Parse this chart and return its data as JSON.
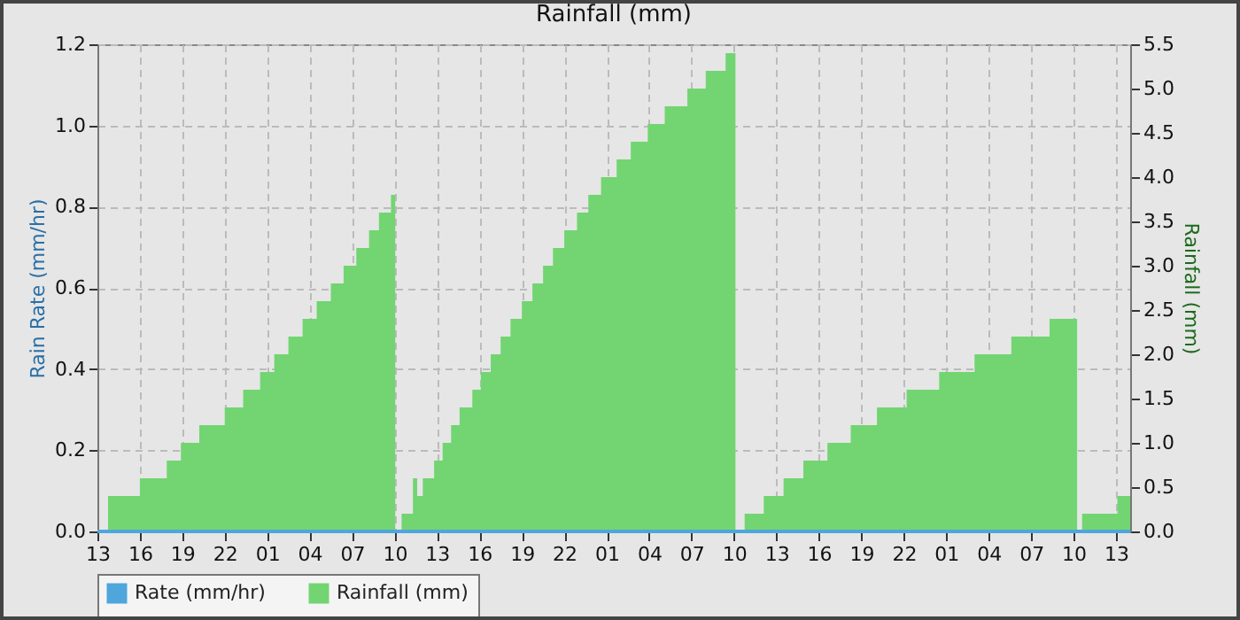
{
  "chart_data": {
    "type": "line",
    "title": "Rainfall (mm)",
    "ylabel": "Rain Rate (mm/hr)",
    "y2label": "Rainfall (mm)",
    "xlim": [
      "--01-01T13:00",
      "--01-04T14:00"
    ],
    "xticks": [
      {
        "value": "--01-01T13:00",
        "label": "13"
      },
      {
        "value": "--01-01T16:00",
        "label": "16"
      },
      {
        "value": "--01-01T19:00",
        "label": "19"
      },
      {
        "value": "--01-01T22:00",
        "label": "22"
      },
      {
        "value": "--01-02T01:00",
        "label": "01"
      },
      {
        "value": "--01-02T04:00",
        "label": "04"
      },
      {
        "value": "--01-02T07:00",
        "label": "07"
      },
      {
        "value": "--01-02T10:00",
        "label": "10"
      },
      {
        "value": "--01-02T13:00",
        "label": "13"
      },
      {
        "value": "--01-02T16:00",
        "label": "16"
      },
      {
        "value": "--01-02T19:00",
        "label": "19"
      },
      {
        "value": "--01-02T22:00",
        "label": "22"
      },
      {
        "value": "--01-03T01:00",
        "label": "01"
      },
      {
        "value": "--01-03T04:00",
        "label": "04"
      },
      {
        "value": "--01-03T07:00",
        "label": "07"
      },
      {
        "value": "--01-03T10:00",
        "label": "10"
      },
      {
        "value": "--01-03T13:00",
        "label": "13"
      },
      {
        "value": "--01-03T16:00",
        "label": "16"
      },
      {
        "value": "--01-03T19:00",
        "label": "19"
      },
      {
        "value": "--01-03T22:00",
        "label": "22"
      },
      {
        "value": "--01-04T01:00",
        "label": "01"
      },
      {
        "value": "--01-04T04:00",
        "label": "04"
      },
      {
        "value": "--01-04T07:00",
        "label": "07"
      },
      {
        "value": "--01-04T10:00",
        "label": "10"
      },
      {
        "value": "--01-04T13:00",
        "label": "13"
      }
    ],
    "ylim": [
      0,
      1.2
    ],
    "yticks": [
      {
        "value": 0,
        "label": "0.0"
      },
      0.2,
      0.4,
      0.6,
      0.8,
      {
        "value": 1,
        "label": "1.0"
      },
      1.2
    ],
    "y2lim": [
      0,
      5.5
    ],
    "y2ticks": [
      {
        "value": 0,
        "label": "0.0"
      },
      0.5,
      {
        "value": 1,
        "label": "1.0"
      },
      1.5,
      {
        "value": 2,
        "label": "2.0"
      },
      2.5,
      {
        "value": 3,
        "label": "3.0"
      },
      3.5,
      {
        "value": 4,
        "label": "4.0"
      },
      4.5,
      {
        "value": 5,
        "label": "5.0"
      },
      5.5
    ],
    "grid": true,
    "legend": "bottom",
    "series": [
      {
        "name": "Rate (mm/hr)",
        "color": "#4ea6dc",
        "x": [
          "--01-01T13:00",
          "--01-04T14:00"
        ],
        "values": [
          0,
          0
        ]
      },
      {
        "name": "Rainfall (mm)",
        "type": "area",
        "axis": "y2",
        "color": "#72d572",
        "x": [
          "--01-01T13:45",
          "--01-01T16:00",
          "--01-01T17:54",
          "--01-01T18:54",
          "--01-01T20:12",
          "--01-01T22:00",
          "--01-01T23:18",
          "--01-02T00:30",
          "--01-02T01:30",
          "--01-02T02:30",
          "--01-02T03:30",
          "--01-02T04:30",
          "--01-02T05:30",
          "--01-02T06:24",
          "--01-02T07:18",
          "--01-02T08:12",
          "--01-02T08:54",
          "--01-02T09:45",
          "--01-02T10:03",
          "--01-02T10:06",
          "--01-02T10:30",
          "--01-02T11:18",
          "--01-02T11:36",
          "--01-02T12:00",
          "--01-02T12:48",
          "--01-02T13:24",
          "--01-02T14:00",
          "--01-02T14:36",
          "--01-02T15:30",
          "--01-02T16:06",
          "--01-02T16:48",
          "--01-02T17:30",
          "--01-02T18:12",
          "--01-02T19:00",
          "--01-02T19:45",
          "--01-02T20:30",
          "--01-02T21:12",
          "--01-02T22:00",
          "--01-02T22:54",
          "--01-02T23:42",
          "--01-03T00:36",
          "--01-03T01:42",
          "--01-03T02:42",
          "--01-03T03:54",
          "--01-03T05:06",
          "--01-03T06:42",
          "--01-03T08:00",
          "--01-03T09:24",
          "--01-03T10:06",
          "--01-03T10:12",
          "--01-03T10:45",
          "--01-03T12:06",
          "--01-03T13:30",
          "--01-03T14:54",
          "--01-03T16:36",
          "--01-03T18:15",
          "--01-03T20:06",
          "--01-03T22:12",
          "--01-04T00:30",
          "--01-04T03:00",
          "--01-04T05:36",
          "--01-04T08:18",
          "--01-04T10:15",
          "--01-04T10:18",
          "--01-04T10:36",
          "--01-04T13:06",
          "--01-04T14:00"
        ],
        "values": [
          0.4,
          0.6,
          0.8,
          1.0,
          1.2,
          1.4,
          1.6,
          1.8,
          2.0,
          2.2,
          2.4,
          2.6,
          2.8,
          3.0,
          3.2,
          3.4,
          3.6,
          3.8,
          3.8,
          null,
          0.2,
          0.6,
          0.4,
          0.6,
          0.8,
          1.0,
          1.2,
          1.4,
          1.6,
          1.8,
          2.0,
          2.2,
          2.4,
          2.6,
          2.8,
          3.0,
          3.2,
          3.4,
          3.6,
          3.8,
          4.0,
          4.2,
          4.4,
          4.6,
          4.8,
          5.0,
          5.2,
          5.4,
          5.4,
          null,
          0.2,
          0.4,
          0.6,
          0.8,
          1.0,
          1.2,
          1.4,
          1.6,
          1.8,
          2.0,
          2.2,
          2.4,
          2.4,
          null,
          0.2,
          0.4,
          0.4
        ]
      }
    ]
  }
}
